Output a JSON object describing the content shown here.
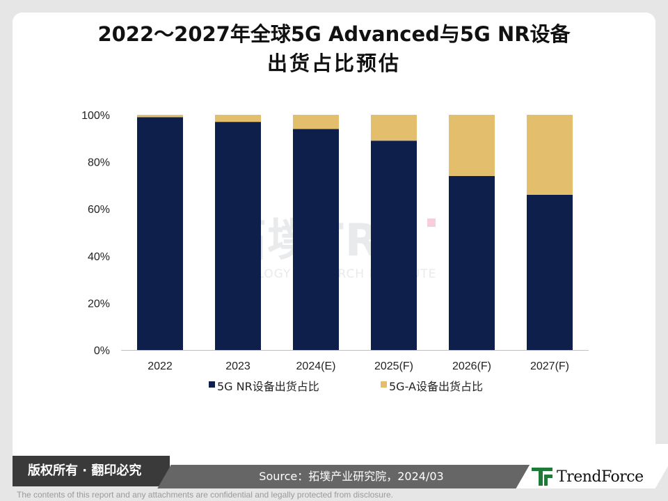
{
  "title_line1": "2022～2027年全球5G Advanced与5G NR设备",
  "title_line2": "出货占比预估",
  "watermark": {
    "main": "拓墣TRI",
    "sub": "TOPOLOGY RESEARCH INSTITUTE"
  },
  "footer": {
    "copyright": "版权所有 · 翻印必究",
    "source": "Source：拓墣产业研究院，2024/03",
    "logo": "TrendForce",
    "disclaimer": "The contents of this report and any attachments are confidential and legally protected from disclosure."
  },
  "colors": {
    "nr": "#0f1f4b",
    "advanced": "#e3be6c"
  },
  "chart_data": {
    "type": "bar",
    "stacked": true,
    "categories": [
      "2022",
      "2023",
      "2024(E)",
      "2025(F)",
      "2026(F)",
      "2027(F)"
    ],
    "series": [
      {
        "name": "5G NR设备出货占比",
        "values": [
          99,
          97,
          94,
          89,
          74,
          66
        ]
      },
      {
        "name": "5G-A设备出货占比",
        "values": [
          1,
          3,
          6,
          11,
          26,
          34
        ]
      }
    ],
    "yticks": [
      "0%",
      "20%",
      "40%",
      "60%",
      "80%",
      "100%"
    ],
    "ylim": [
      0,
      100
    ],
    "legend": "bottom"
  }
}
